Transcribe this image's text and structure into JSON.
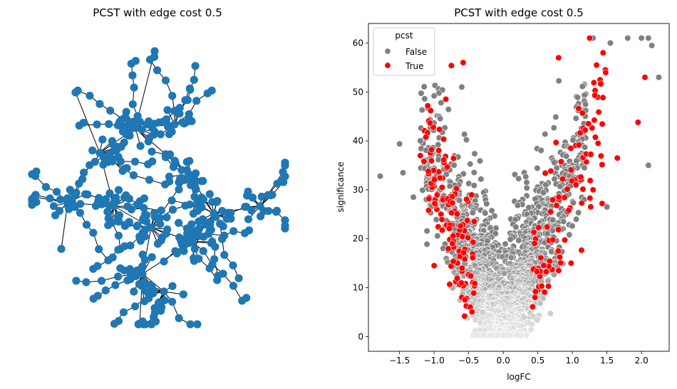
{
  "figure": {
    "background": "#ffffff"
  },
  "chart_data": [
    {
      "type": "network",
      "title": "PCST with edge cost 0.5",
      "node_color": "#1f77b4",
      "edge_color": "#000000",
      "axes_visible": false,
      "nodes_approx": 410
    },
    {
      "type": "scatter",
      "title": "PCST with edge cost 0.5",
      "xlabel": "logFC",
      "ylabel": "significance",
      "xlim": [
        -1.95,
        2.4
      ],
      "ylim": [
        -3,
        64
      ],
      "xticks": [
        -1.5,
        -1.0,
        -0.5,
        0.0,
        0.5,
        1.0,
        1.5,
        2.0
      ],
      "xtick_labels": [
        "−1.5",
        "−1.0",
        "−0.5",
        "0.0",
        "0.5",
        "1.0",
        "1.5",
        "2.0"
      ],
      "yticks": [
        0,
        10,
        20,
        30,
        40,
        50,
        60
      ],
      "ytick_labels": [
        "0",
        "10",
        "20",
        "30",
        "40",
        "50",
        "60"
      ],
      "legend": {
        "title": "pcst",
        "location": "upper-left",
        "entries": [
          {
            "label": "False",
            "color": "#808080"
          },
          {
            "label": "True",
            "color": "#ff0000"
          }
        ]
      },
      "series": [
        {
          "name": "False",
          "color": "#808080",
          "edge": "#ffffff",
          "description": "volcano-shaped cloud; significance grows with |logFC|",
          "sample_points": [
            [
              -1.78,
              32.8
            ],
            [
              -1.5,
              39.4
            ],
            [
              -1.45,
              33.5
            ],
            [
              -1.3,
              28.5
            ],
            [
              -1.2,
              40.0
            ],
            [
              -1.0,
              49.2
            ],
            [
              -0.9,
              47.8
            ],
            [
              -0.6,
              51.0
            ],
            [
              1.3,
              61.0
            ],
            [
              1.55,
              60.0
            ],
            [
              1.8,
              61.0
            ],
            [
              2.0,
              61.0
            ],
            [
              2.1,
              61.0
            ],
            [
              2.15,
              59.5
            ],
            [
              2.25,
              53.0
            ],
            [
              2.1,
              35.0
            ],
            [
              1.5,
              26.5
            ],
            [
              -0.3,
              5.0
            ],
            [
              0.3,
              4.0
            ],
            [
              0.0,
              0.2
            ]
          ]
        },
        {
          "name": "True",
          "color": "#ff0000",
          "edge": "#ffffff",
          "description": "highlighted subset selected by PCST",
          "sample_points": [
            [
              -0.75,
              55.4
            ],
            [
              -0.58,
              56.0
            ],
            [
              -1.05,
              46.2
            ],
            [
              -1.2,
              37.0
            ],
            [
              1.25,
              61.0
            ],
            [
              1.35,
              55.5
            ],
            [
              2.05,
              53.0
            ],
            [
              1.95,
              43.8
            ],
            [
              1.65,
              36.5
            ],
            [
              1.3,
              30.0
            ],
            [
              0.8,
              57.0
            ],
            [
              -1.0,
              14.5
            ],
            [
              -0.6,
              8.0
            ],
            [
              0.5,
              9.5
            ]
          ]
        }
      ]
    }
  ]
}
